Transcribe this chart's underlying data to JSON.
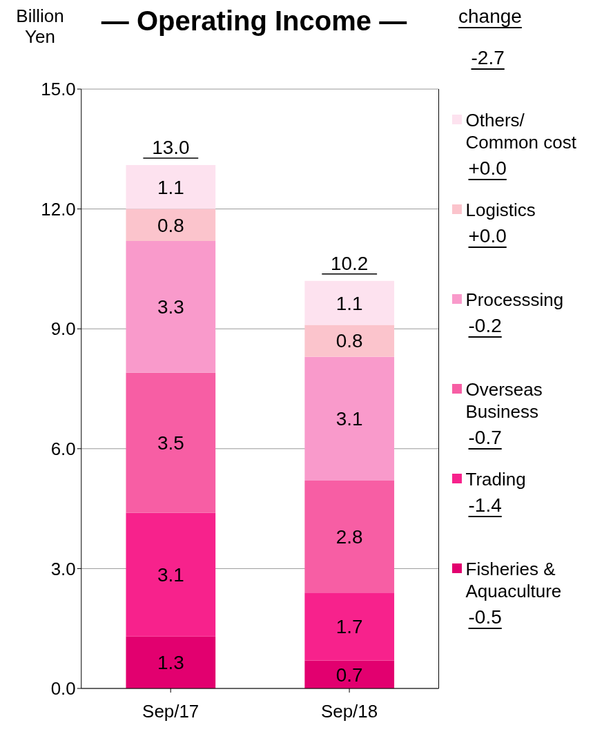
{
  "chart_data": {
    "type": "bar",
    "title": "— Operating Income —",
    "ylabel": "Billion Yen",
    "categories": [
      "Sep/17",
      "Sep/18"
    ],
    "stacked": true,
    "series": [
      {
        "name": "Fisheries & Aquaculture",
        "color": "#e2006f",
        "values": [
          1.3,
          0.7
        ]
      },
      {
        "name": "Trading",
        "color": "#f7228c",
        "values": [
          3.1,
          1.7
        ]
      },
      {
        "name": "Overseas Business",
        "color": "#f75ea4",
        "values": [
          3.5,
          2.8
        ]
      },
      {
        "name": "Processsing",
        "color": "#f99acb",
        "values": [
          3.3,
          3.1
        ]
      },
      {
        "name": "Logistics",
        "color": "#fbc4cc",
        "values": [
          0.8,
          0.8
        ]
      },
      {
        "name": "Others/ Common cost",
        "color": "#fde2ef",
        "values": [
          1.1,
          1.1
        ]
      }
    ],
    "totals": [
      "13.0",
      "10.2"
    ],
    "data_labels": true,
    "ylim": [
      0,
      15
    ],
    "yticks": [
      {
        "value": 0,
        "label": "0.0"
      },
      {
        "value": 3,
        "label": "3.0"
      },
      {
        "value": 6,
        "label": "6.0"
      },
      {
        "value": 9,
        "label": "9.0"
      },
      {
        "value": 12,
        "label": "12.0"
      },
      {
        "value": 15,
        "label": "15.0"
      }
    ],
    "grid": "y",
    "legend": "right",
    "annotations": [
      "change",
      "-2.7",
      "+0.0",
      "+0.0",
      "-0.2",
      "-0.7",
      "-1.4",
      "-0.5"
    ]
  }
}
